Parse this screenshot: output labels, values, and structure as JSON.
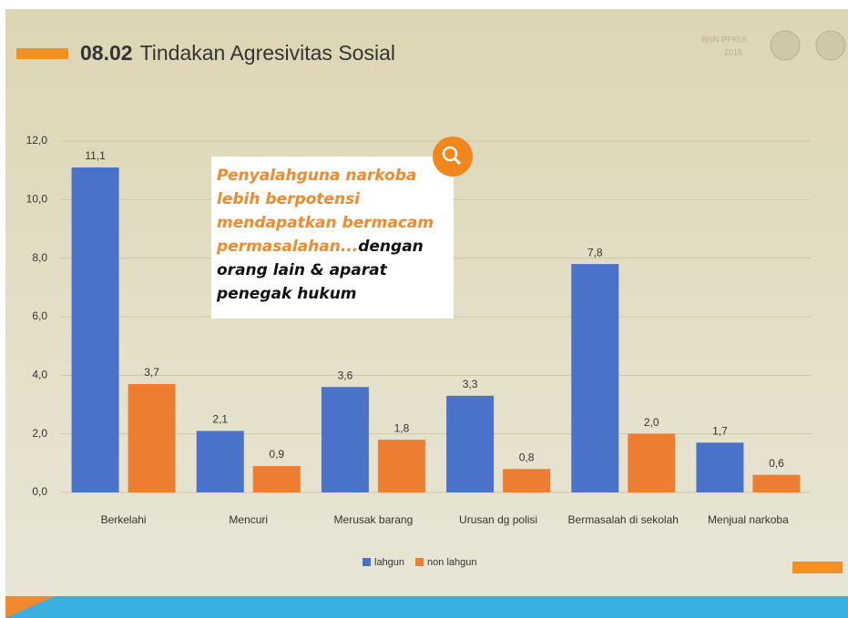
{
  "chart_data": {
    "type": "bar",
    "title_number": "08.02",
    "title": "Tindakan Agresivitas Sosial",
    "logo_text": [
      "BNN-PPKUI",
      "2016"
    ],
    "callout": {
      "highlight": "Penyalahguna narkoba lebih berpotensi mendapatkan bermacam permasalahan...",
      "text": "dengan orang lain & aparat penegak hukum"
    },
    "categories": [
      "Berkelahi",
      "Mencuri",
      "Merusak barang",
      "Urusan dg polisi",
      "Bermasalah di sekolah",
      "Menjual narkoba"
    ],
    "series": [
      {
        "name": "lahgun",
        "color": "#4a72c8",
        "values": [
          11.1,
          2.1,
          3.6,
          3.3,
          7.8,
          1.7
        ],
        "value_labels": [
          "11,1",
          "2,1",
          "3,6",
          "3,3",
          "7,8",
          "1,7"
        ]
      },
      {
        "name": "non lahgun",
        "color": "#ed7d31",
        "values": [
          3.7,
          0.9,
          1.8,
          0.8,
          2.0,
          0.6
        ],
        "value_labels": [
          "3,7",
          "0,9",
          "1,8",
          "0,8",
          "2,0",
          "0,6"
        ]
      }
    ],
    "ylim": [
      0,
      12
    ],
    "yticks": [
      {
        "value": 0,
        "label": "0,0"
      },
      {
        "value": 2,
        "label": "2,0"
      },
      {
        "value": 4,
        "label": "4,0"
      },
      {
        "value": 6,
        "label": "6,0"
      },
      {
        "value": 8,
        "label": "8,0"
      },
      {
        "value": 10,
        "label": "10,0"
      },
      {
        "value": 12,
        "label": "12,0"
      }
    ],
    "grid": true,
    "legend": "bottom"
  }
}
